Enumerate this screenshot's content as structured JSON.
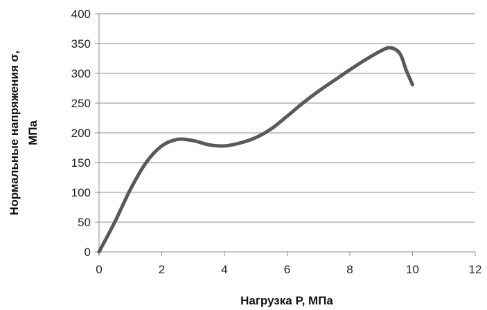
{
  "chart_data": {
    "type": "line",
    "xlabel": "Нагрузка P, МПа",
    "ylabel_line1": "Нормальные напряжения σ,",
    "ylabel_line2": "МПа",
    "xlim": [
      0,
      12
    ],
    "ylim": [
      0,
      400
    ],
    "x_ticks": [
      0,
      2,
      4,
      6,
      8,
      10,
      12
    ],
    "y_ticks": [
      0,
      50,
      100,
      150,
      200,
      250,
      300,
      350,
      400
    ],
    "grid": "horizontal",
    "legend": "none",
    "series": [
      {
        "color": "#595959",
        "points": [
          {
            "x": 0,
            "y": 0
          },
          {
            "x": 0.5,
            "y": 50
          },
          {
            "x": 1.0,
            "y": 105
          },
          {
            "x": 1.5,
            "y": 150
          },
          {
            "x": 2.0,
            "y": 178
          },
          {
            "x": 2.5,
            "y": 189
          },
          {
            "x": 3.0,
            "y": 187
          },
          {
            "x": 3.5,
            "y": 180
          },
          {
            "x": 4.0,
            "y": 178
          },
          {
            "x": 4.5,
            "y": 183
          },
          {
            "x": 5.0,
            "y": 192
          },
          {
            "x": 5.5,
            "y": 207
          },
          {
            "x": 6.0,
            "y": 228
          },
          {
            "x": 6.5,
            "y": 250
          },
          {
            "x": 7.0,
            "y": 270
          },
          {
            "x": 7.5,
            "y": 288
          },
          {
            "x": 8.0,
            "y": 306
          },
          {
            "x": 8.5,
            "y": 323
          },
          {
            "x": 9.0,
            "y": 338
          },
          {
            "x": 9.3,
            "y": 343
          },
          {
            "x": 9.6,
            "y": 333
          },
          {
            "x": 9.8,
            "y": 305
          },
          {
            "x": 10.0,
            "y": 281
          }
        ]
      }
    ]
  }
}
